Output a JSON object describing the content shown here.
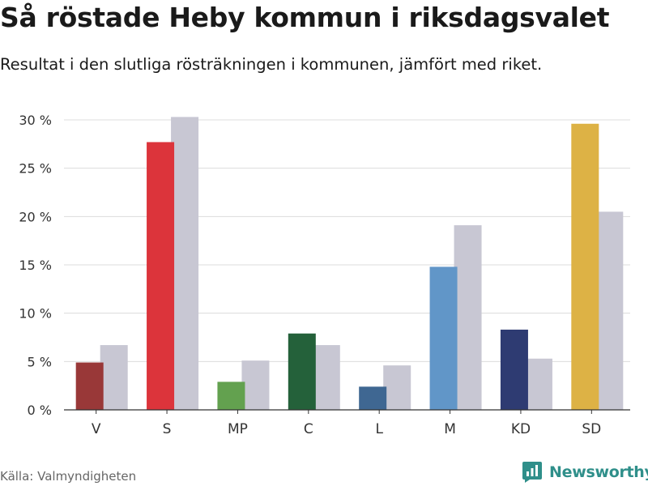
{
  "title": "Så röstade Heby kommun i riksdagsvalet",
  "subtitle": "Resultat i den slutliga rösträkningen i kommunen, jämfört med riket.",
  "source": "Källa: Valmyndigheten",
  "brand": "Newsworthy",
  "chart_data": {
    "type": "bar",
    "categories": [
      "V",
      "S",
      "MP",
      "C",
      "L",
      "M",
      "KD",
      "SD"
    ],
    "series": [
      {
        "values": [
          4.9,
          27.7,
          2.9,
          7.9,
          2.4,
          14.8,
          8.3,
          29.6
        ],
        "colors": [
          "#993838",
          "#dc343b",
          "#63a14f",
          "#24613a",
          "#3f6792",
          "#6196c8",
          "#2e3b72",
          "#ddb245"
        ]
      },
      {
        "values": [
          6.7,
          30.3,
          5.1,
          6.7,
          4.6,
          19.1,
          5.3,
          20.5
        ],
        "color": "#c8c7d3"
      }
    ],
    "yticks": [
      0,
      5,
      10,
      15,
      20,
      25,
      30
    ],
    "ytick_labels": [
      "0 %",
      "5 %",
      "10 %",
      "15 %",
      "20 %",
      "25 %",
      "30 %"
    ],
    "ylim": [
      0,
      30
    ],
    "grid": true,
    "xlabel": "",
    "ylabel": ""
  }
}
